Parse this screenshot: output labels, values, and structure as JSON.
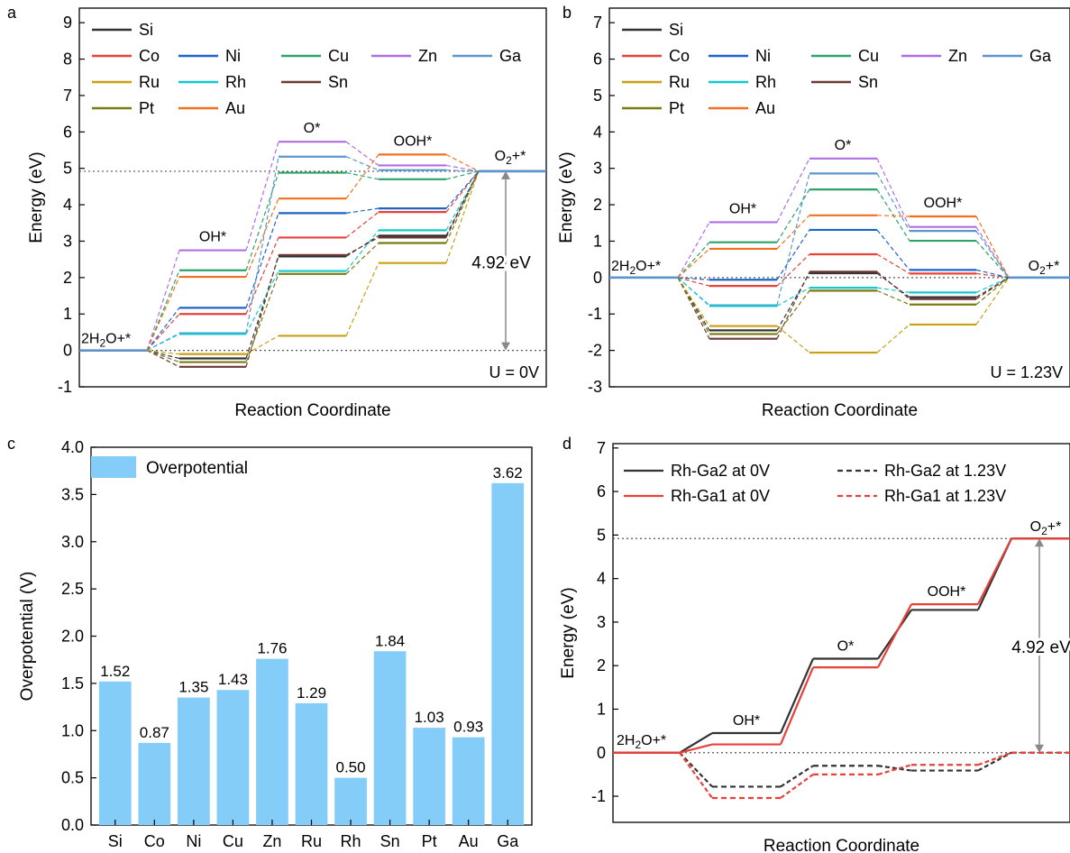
{
  "panel_labels": {
    "a": "a",
    "b": "b",
    "c": "c",
    "d": "d"
  },
  "state_labels": {
    "start": "2H₂O+*",
    "oh": "OH*",
    "o": "O*",
    "ooh": "OOH*",
    "o2": "O₂+*"
  },
  "gap_label": "4.92 eV",
  "colors": {
    "Si": "#333333",
    "Co": "#e8403a",
    "Ni": "#1b64c8",
    "Cu": "#2ea36a",
    "Zn": "#b06ee0",
    "Ga": "#5b95cf",
    "Ru": "#c8a012",
    "Rh": "#14c8d0",
    "Sn": "#6b3a32",
    "Pt": "#7a7a10",
    "Au": "#f07020",
    "bar": "#85cdf9",
    "rh_ga2": "#333333",
    "rh_ga1": "#e8403a",
    "guide": "#888888",
    "baseline": "#5b95cf"
  },
  "chart_data": [
    {
      "id": "a",
      "type": "line",
      "xlabel": "Reaction Coordinate",
      "ylabel": "Energy (eV)",
      "ylim": [
        -1,
        9.4
      ],
      "yticks": [
        -1,
        0,
        1,
        2,
        3,
        4,
        5,
        6,
        7,
        8,
        9
      ],
      "condition": "U = 0V",
      "x": [
        "2H₂O+*",
        "OH*",
        "O*",
        "OOH*",
        "O₂+*"
      ],
      "legend_rows": [
        [
          "Si"
        ],
        [
          "Co",
          "Ni",
          "Cu",
          "Zn",
          "Ga"
        ],
        [
          "Ru",
          "Rh",
          "Sn"
        ],
        [
          "Pt",
          "Au"
        ]
      ],
      "series": [
        {
          "name": "Si",
          "values": [
            0,
            -0.22,
            2.58,
            3.15,
            4.92
          ]
        },
        {
          "name": "Co",
          "values": [
            0,
            1.0,
            3.1,
            3.8,
            4.92
          ]
        },
        {
          "name": "Ni",
          "values": [
            0,
            1.17,
            3.77,
            3.9,
            4.92
          ]
        },
        {
          "name": "Cu",
          "values": [
            0,
            2.2,
            4.88,
            4.7,
            4.92
          ]
        },
        {
          "name": "Zn",
          "values": [
            0,
            2.75,
            5.73,
            5.08,
            4.92
          ]
        },
        {
          "name": "Ga",
          "values": [
            0,
            0.47,
            5.32,
            4.95,
            4.92
          ]
        },
        {
          "name": "Ru",
          "values": [
            0,
            -0.1,
            0.4,
            2.4,
            4.92
          ]
        },
        {
          "name": "Rh",
          "values": [
            0,
            0.45,
            2.18,
            3.3,
            4.92
          ]
        },
        {
          "name": "Sn",
          "values": [
            0,
            -0.45,
            2.62,
            3.1,
            4.92
          ]
        },
        {
          "name": "Pt",
          "values": [
            0,
            -0.32,
            2.1,
            2.95,
            4.92
          ]
        },
        {
          "name": "Au",
          "values": [
            0,
            2.02,
            4.17,
            5.38,
            4.92
          ]
        }
      ]
    },
    {
      "id": "b",
      "type": "line",
      "xlabel": "Reaction Coordinate",
      "ylabel": "Energy (eV)",
      "ylim": [
        -3,
        7.4
      ],
      "yticks": [
        -3,
        -2,
        -1,
        0,
        1,
        2,
        3,
        4,
        5,
        6,
        7
      ],
      "condition": "U = 1.23V",
      "x": [
        "2H₂O+*",
        "OH*",
        "O*",
        "OOH*",
        "O₂+*"
      ],
      "legend_rows": [
        [
          "Si"
        ],
        [
          "Co",
          "Ni",
          "Cu",
          "Zn",
          "Ga"
        ],
        [
          "Ru",
          "Rh",
          "Sn"
        ],
        [
          "Pt",
          "Au"
        ]
      ],
      "series": [
        {
          "name": "Si",
          "values": [
            0,
            -1.45,
            0.12,
            -0.54,
            0
          ]
        },
        {
          "name": "Co",
          "values": [
            0,
            -0.23,
            0.64,
            0.11,
            0
          ]
        },
        {
          "name": "Ni",
          "values": [
            0,
            -0.06,
            1.31,
            0.21,
            0
          ]
        },
        {
          "name": "Cu",
          "values": [
            0,
            0.97,
            2.42,
            1.01,
            0
          ]
        },
        {
          "name": "Zn",
          "values": [
            0,
            1.52,
            3.27,
            1.39,
            0
          ]
        },
        {
          "name": "Ga",
          "values": [
            0,
            -0.76,
            2.86,
            1.28,
            0
          ]
        },
        {
          "name": "Ru",
          "values": [
            0,
            -1.33,
            -2.06,
            -1.29,
            0
          ]
        },
        {
          "name": "Rh",
          "values": [
            0,
            -0.78,
            -0.28,
            -0.41,
            0
          ]
        },
        {
          "name": "Sn",
          "values": [
            0,
            -1.68,
            0.16,
            -0.59,
            0
          ]
        },
        {
          "name": "Pt",
          "values": [
            0,
            -1.55,
            -0.36,
            -0.74,
            0
          ]
        },
        {
          "name": "Au",
          "values": [
            0,
            0.79,
            1.71,
            1.68,
            0
          ]
        }
      ]
    },
    {
      "id": "c",
      "type": "bar",
      "xlabel": "",
      "ylabel": "Overpotential (V)",
      "ylim": [
        0,
        4.0
      ],
      "yticks": [
        0.0,
        0.5,
        1.0,
        1.5,
        2.0,
        2.5,
        3.0,
        3.5,
        4.0
      ],
      "ytick_labels": [
        "0.0",
        "0.5",
        "1.0",
        "1.5",
        "2.0",
        "2.5",
        "3.0",
        "3.5",
        "4.0"
      ],
      "legend": "Overpotential",
      "categories": [
        "Si",
        "Co",
        "Ni",
        "Cu",
        "Zn",
        "Ru",
        "Rh",
        "Sn",
        "Pt",
        "Au",
        "Ga"
      ],
      "values": [
        1.52,
        0.87,
        1.35,
        1.43,
        1.76,
        1.29,
        0.5,
        1.84,
        1.03,
        0.93,
        3.62
      ],
      "value_labels": [
        "1.52",
        "0.87",
        "1.35",
        "1.43",
        "1.76",
        "1.29",
        "0.50",
        "1.84",
        "1.03",
        "0.93",
        "3.62"
      ]
    },
    {
      "id": "d",
      "type": "line",
      "xlabel": "Reaction Coordinate",
      "ylabel": "Energy (eV)",
      "ylim": [
        -1.6,
        7.1
      ],
      "yticks": [
        -1,
        0,
        1,
        2,
        3,
        4,
        5,
        6,
        7
      ],
      "x": [
        "2H₂O+*",
        "OH*",
        "O*",
        "OOH*",
        "O₂+*"
      ],
      "series": [
        {
          "name": "Rh-Ga2 at 0V",
          "values": [
            0,
            0.45,
            2.16,
            3.28,
            4.92
          ],
          "style": "solid",
          "color": "rh_ga2"
        },
        {
          "name": "Rh-Ga2 at 1.23V",
          "values": [
            0,
            -0.78,
            -0.3,
            -0.41,
            0
          ],
          "style": "dashed",
          "color": "rh_ga2"
        },
        {
          "name": "Rh-Ga1 at 0V",
          "values": [
            0,
            0.19,
            1.96,
            3.41,
            4.92
          ],
          "style": "solid",
          "color": "rh_ga1"
        },
        {
          "name": "Rh-Ga1 at 1.23V",
          "values": [
            0,
            -1.04,
            -0.5,
            -0.28,
            0
          ],
          "style": "dashed",
          "color": "rh_ga1"
        }
      ]
    }
  ]
}
